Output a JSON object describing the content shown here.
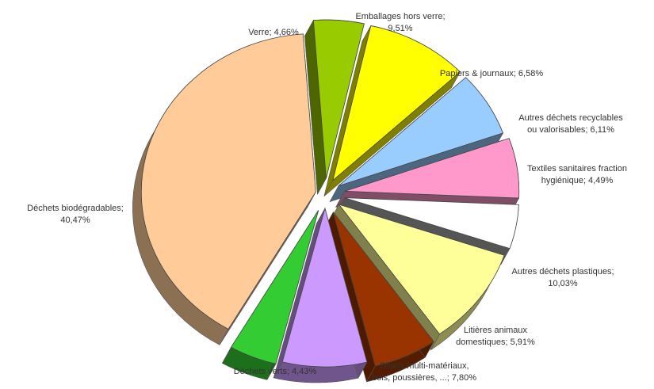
{
  "chart_data": {
    "type": "pie",
    "subtype": "exploded-3d",
    "unit": "%",
    "slices": [
      {
        "name": "Verre",
        "value": 4.66,
        "label": "Verre; 4,66%",
        "color": "#99CC00"
      },
      {
        "name": "Emballages hors verre",
        "value": 9.51,
        "label": "Emballages hors verre;\n9,51%",
        "color": "#FFFF00"
      },
      {
        "name": "Papiers & journaux",
        "value": 6.58,
        "label": "Papiers & journaux; 6,58%",
        "color": "#99CCFF"
      },
      {
        "name": "Autres déchets recyclables ou valorisables",
        "value": 6.11,
        "label": "Autres déchets recyclables\nou valorisables; 6,11%",
        "color": "#FF99CC"
      },
      {
        "name": "Textiles sanitaires fraction hygiénique",
        "value": 4.49,
        "label": "Textiles sanitaires fraction\nhygiénique; 4,49%",
        "color": "#FFFFFF"
      },
      {
        "name": "Autres déchets plastiques",
        "value": 10.03,
        "label": "Autres déchets plastiques;\n10,03%",
        "color": "#FFFF99"
      },
      {
        "name": "Litières animaux domestiques",
        "value": 5.91,
        "label": "Litières animaux\ndomestiques; 5,91%",
        "color": "#993300"
      },
      {
        "name": "Objets multi-matériaux, bois, poussières, ...",
        "value": 7.8,
        "label": "Objets multi-matériaux,\nbois, poussières, ...; 7,80%",
        "color": "#CC99FF"
      },
      {
        "name": "Déchets verts",
        "value": 4.43,
        "label": "Déchets verts; 4,43%",
        "color": "#33CC33"
      },
      {
        "name": "Déchets biodégradables",
        "value": 40.47,
        "label": "Déchets biodégradables;\n40,47%",
        "color": "#FFCC99"
      }
    ],
    "title": "",
    "legend": "none"
  }
}
